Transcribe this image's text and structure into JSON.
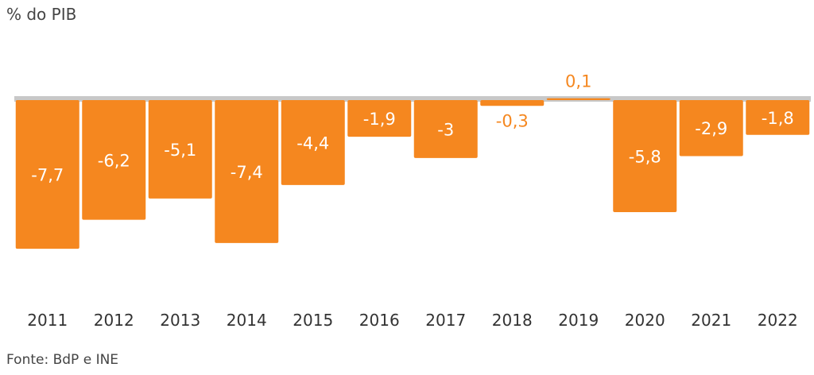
{
  "chart_data": {
    "type": "bar",
    "unit_label": "% do PIB",
    "categories": [
      "2011",
      "2012",
      "2013",
      "2014",
      "2015",
      "2016",
      "2017",
      "2018",
      "2019",
      "2020",
      "2021",
      "2022"
    ],
    "values": [
      -7.7,
      -6.2,
      -5.1,
      -7.4,
      -4.4,
      -1.9,
      -3,
      -0.3,
      0.1,
      -5.8,
      -2.9,
      -1.8
    ],
    "value_labels": [
      "-7,7",
      "-6,2",
      "-5,1",
      "-7,4",
      "-4,4",
      "-1,9",
      "-3",
      "-0,3",
      "0,1",
      "-5,8",
      "-2,9",
      "-1,8"
    ],
    "ylim": [
      -8,
      0.2
    ],
    "grid": false,
    "colors": {
      "bar": "#F5871F",
      "baseline": "#C8C8C8",
      "label_inside": "#FFFFFF",
      "label_outside": "#F5871F",
      "tick": "#333333"
    },
    "source": "Fonte: BdP e INE"
  }
}
